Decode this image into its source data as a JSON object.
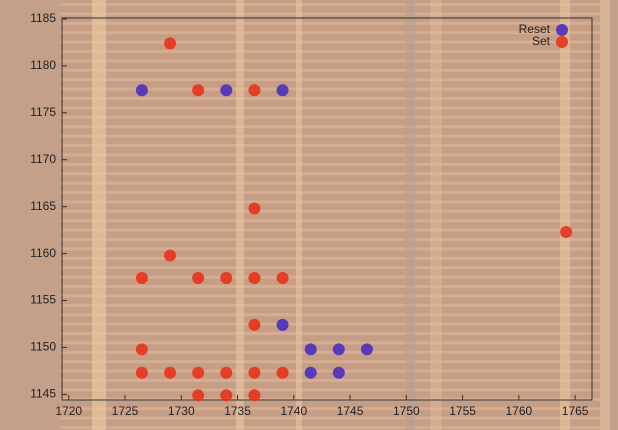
{
  "chart_data": {
    "type": "scatter",
    "xlim": [
      1719.4,
      1766.5
    ],
    "ylim": [
      1144.4,
      1185.1
    ],
    "xticks": [
      1720,
      1725,
      1730,
      1735,
      1740,
      1745,
      1750,
      1755,
      1760,
      1765
    ],
    "yticks": [
      1145,
      1150,
      1155,
      1160,
      1165,
      1170,
      1175,
      1180,
      1185
    ],
    "legend": "upper right",
    "series": [
      {
        "name": "Reset",
        "color": "#4a2fc0",
        "x": [
          1726.5,
          1734,
          1739,
          1739,
          1741.5,
          1744,
          1746.5,
          1741.5,
          1744
        ],
        "values": [
          1177.4,
          1177.4,
          1177.4,
          1152.4,
          1149.8,
          1149.8,
          1149.8,
          1147.3,
          1147.3
        ]
      },
      {
        "name": "Set",
        "color": "#e8321c",
        "x": [
          1729,
          1731.5,
          1736.5,
          1736.5,
          1764.2,
          1729,
          1726.5,
          1731.5,
          1734,
          1736.5,
          1739,
          1736.5,
          1726.5,
          1726.5,
          1729,
          1731.5,
          1734,
          1736.5,
          1739,
          1731.5,
          1734,
          1736.5
        ],
        "values": [
          1182.4,
          1177.4,
          1177.4,
          1164.8,
          1162.3,
          1159.8,
          1157.4,
          1157.4,
          1157.4,
          1157.4,
          1157.4,
          1152.4,
          1149.8,
          1147.3,
          1147.3,
          1147.3,
          1147.3,
          1147.3,
          1147.3,
          1144.9,
          1144.9,
          1144.9
        ]
      }
    ]
  }
}
